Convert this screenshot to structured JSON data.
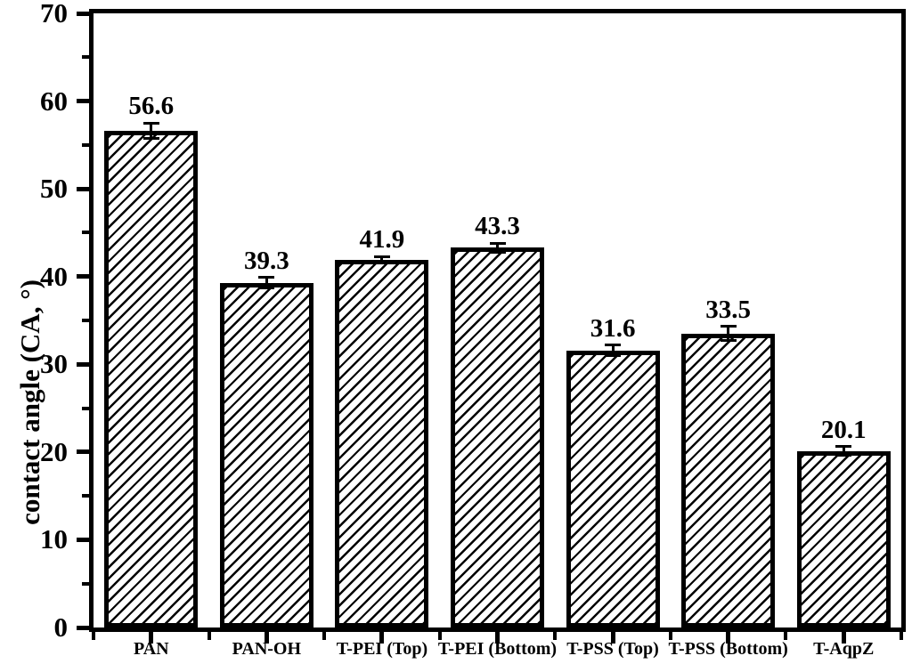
{
  "figure": {
    "background_color": "#ffffff",
    "axis_color": "#000000",
    "text_color": "#000000"
  },
  "chart_data": {
    "type": "bar",
    "title": "",
    "xlabel": "",
    "ylabel": "contact angle (CA, °)",
    "ylim": [
      0,
      70
    ],
    "y_major_ticks": [
      0,
      10,
      20,
      30,
      40,
      50,
      60,
      70
    ],
    "y_minor_tick_step": 5,
    "grid": false,
    "legend": null,
    "frame": "full-box",
    "bar_style": {
      "fill": "#ffffff",
      "hatch": "diagonal-forward-slash",
      "border_color": "#000000"
    },
    "categories": [
      "PAN",
      "PAN-OH",
      "T-PEI (Top)",
      "T-PEI (Bottom)",
      "T-PSS (Top)",
      "T-PSS (Bottom)",
      "T-AqpZ"
    ],
    "values": [
      56.6,
      39.3,
      41.9,
      43.3,
      31.6,
      33.5,
      20.1
    ],
    "errors": [
      0.9,
      0.6,
      0.4,
      0.5,
      0.6,
      0.8,
      0.5
    ],
    "value_labels": [
      "56.6",
      "39.3",
      "41.9",
      "43.3",
      "31.6",
      "33.5",
      "20.1"
    ]
  }
}
